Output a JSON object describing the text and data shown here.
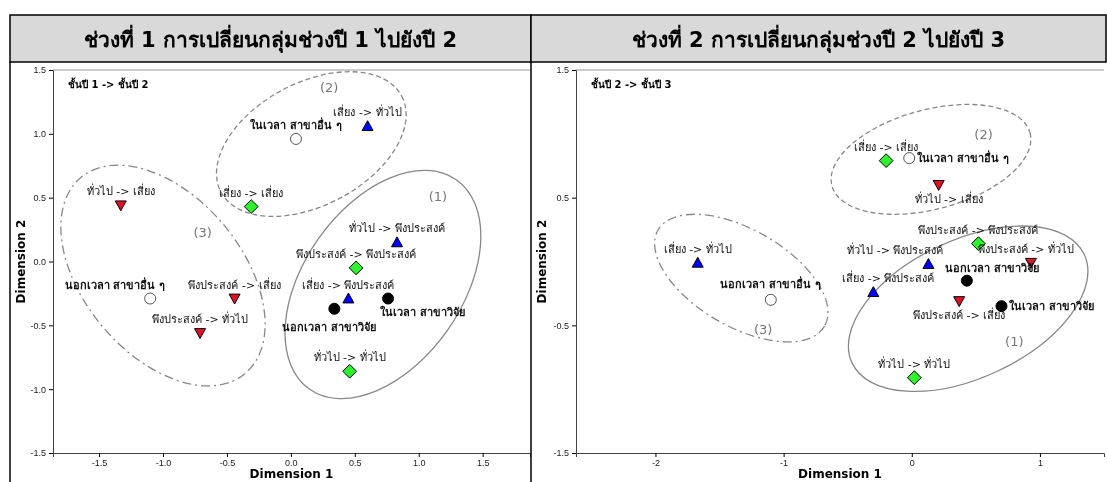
{
  "chart_data": [
    {
      "type": "scatter",
      "title": "ช่วงที่ 1 การเปลี่ยนกลุ่มช่วงปี 1 ไปยังปี 2",
      "subtitle": "ชั้นปี 1 -> ชั้นปี 2",
      "xlabel": "Dimension 1",
      "ylabel": "Dimension 2",
      "xlim": [
        -1.86,
        1.87
      ],
      "ylim": [
        -1.5,
        1.5
      ],
      "xticks": [
        -1.5,
        {
          "value": -1,
          "label": "-1.0"
        },
        -0.5,
        {
          "value": 0,
          "label": "0.0"
        },
        0.5,
        {
          "value": 1,
          "label": "1.0"
        },
        1.5
      ],
      "yticks": [
        -1.5,
        {
          "value": -1,
          "label": "-1.0"
        },
        -0.5,
        {
          "value": 0,
          "label": "0.0"
        },
        0.5,
        {
          "value": 1,
          "label": "1.0"
        },
        1.5
      ],
      "series": [
        {
          "color": "#0000ff",
          "marker": "triangle",
          "x": [
            0.6,
            0.83,
            0.45
          ],
          "values": [
            1.06,
            0.15,
            -0.29
          ]
        },
        {
          "color": "#e0102a",
          "marker": "triangle-down",
          "x": [
            -1.33,
            -0.44,
            -0.71
          ],
          "values": [
            0.44,
            -0.29,
            -0.56
          ]
        },
        {
          "color": "#2ef22e",
          "marker": "diamond",
          "x": [
            -0.31,
            0.51,
            0.46
          ],
          "values": [
            0.43,
            -0.05,
            -0.86
          ]
        },
        {
          "color": "#ffffff",
          "marker": "circle",
          "x": [
            0.04,
            -1.1
          ],
          "values": [
            0.96,
            -0.29
          ]
        },
        {
          "color": "#000000",
          "marker": "circle",
          "x": [
            0.76,
            0.34
          ],
          "values": [
            -0.29,
            -0.37
          ]
        }
      ],
      "annotations": [
        {
          "text": "เสี่ยง -> ทั่วไป",
          "x": 0.6,
          "y": 1.06
        },
        {
          "text": "ทั่วไป -> พึงประสงค์",
          "x": 0.83,
          "y": 0.15
        },
        {
          "text": "เสี่ยง -> พึงประสงค์",
          "x": 0.45,
          "y": -0.29
        },
        {
          "text": "ทั่วไป -> เสี่ยง",
          "x": -1.33,
          "y": 0.44
        },
        {
          "text": "พึงประสงค์ -> เสี่ยง",
          "x": -0.44,
          "y": -0.29
        },
        {
          "text": "พึงประสงค์ -> ทั่วไป",
          "x": -0.71,
          "y": -0.56
        },
        {
          "text": "เสี่ยง -> เสี่ยง",
          "x": -0.31,
          "y": 0.43
        },
        {
          "text": "พึงประสงค์ -> พึงประสงค์",
          "x": 0.51,
          "y": -0.05
        },
        {
          "text": "ทั่วไป -> ทั่วไป",
          "x": 0.46,
          "y": -0.86
        },
        {
          "text": "ในเวลา สาขาอื่น ๆ",
          "x": 0.04,
          "y": 0.96
        },
        {
          "text": "นอกเวลา สาขาอื่น ๆ",
          "x": -1.1,
          "y": -0.29
        },
        {
          "text": "ในเวลา สาขาวิจัย",
          "x": 0.76,
          "y": -0.29
        },
        {
          "text": "นอกเวลา สาขาวิจัย",
          "x": 0.34,
          "y": -0.37
        },
        "(1)",
        "(2)",
        "(3)"
      ]
    },
    {
      "type": "scatter",
      "title": "ช่วงที่ 2 การเปลี่ยนกลุ่มช่วงปี 2 ไปยังปี 3",
      "subtitle": "ชั้นปี 2 -> ชั้นปี 3",
      "xlabel": "Dimension 1",
      "ylabel": "Dimension 2",
      "xlim": [
        -2.62,
        1.5
      ],
      "ylim": [
        -1.5,
        1.5
      ],
      "xticks": [
        -2,
        -1,
        0,
        1
      ],
      "yticks": [
        -1.5,
        -0.5,
        0.5,
        1.5
      ],
      "series": [
        {
          "color": "#0000ff",
          "marker": "triangle",
          "x": [
            -1.67,
            0.13,
            -0.3
          ],
          "values": [
            -0.01,
            -0.02,
            -0.24
          ]
        },
        {
          "color": "#e0102a",
          "marker": "triangle-down",
          "x": [
            0.21,
            0.93,
            0.37
          ],
          "values": [
            0.6,
            -0.01,
            -0.31
          ]
        },
        {
          "color": "#2ef22e",
          "marker": "diamond",
          "x": [
            -0.2,
            0.52,
            0.02
          ],
          "values": [
            0.79,
            0.14,
            -0.91
          ]
        },
        {
          "color": "#ffffff",
          "marker": "circle",
          "x": [
            -0.02,
            -1.1
          ],
          "values": [
            0.81,
            -0.3
          ]
        },
        {
          "color": "#000000",
          "marker": "circle",
          "x": [
            0.43,
            0.7
          ],
          "values": [
            -0.15,
            -0.35
          ]
        }
      ],
      "annotations": [
        {
          "text": "เสี่ยง -> ทั่วไป",
          "x": -1.67,
          "y": -0.01
        },
        {
          "text": "ทั่วไป -> พึงประสงค์",
          "x": 0.13,
          "y": -0.02
        },
        {
          "text": "เสี่ยง -> พึงประสงค์",
          "x": -0.3,
          "y": -0.24
        },
        {
          "text": "ทั่วไป -> เสี่ยง",
          "x": 0.21,
          "y": 0.6
        },
        {
          "text": "พึงประสงค์ -> ทั่วไป",
          "x": 0.93,
          "y": -0.01
        },
        {
          "text": "พึงประสงค์ -> เสี่ยง",
          "x": 0.37,
          "y": -0.31
        },
        {
          "text": "เสี่ยง -> เสี่ยง",
          "x": -0.2,
          "y": 0.79
        },
        {
          "text": "พึงประสงค์ -> พึงประสงค์",
          "x": 0.52,
          "y": 0.14
        },
        {
          "text": "ทั่วไป -> ทั่วไป",
          "x": 0.02,
          "y": -0.91
        },
        {
          "text": "ในเวลา สาขาอื่น ๆ",
          "x": -0.02,
          "y": 0.81
        },
        {
          "text": "นอกเวลา สาขาอื่น ๆ",
          "x": -1.1,
          "y": -0.3
        },
        {
          "text": "นอกเวลา สาขาวิจัย",
          "x": 0.43,
          "y": -0.15
        },
        {
          "text": "ในเวลา สาขาวิจัย",
          "x": 0.7,
          "y": -0.35
        },
        "(2)",
        "(3)",
        "(1)"
      ]
    }
  ]
}
